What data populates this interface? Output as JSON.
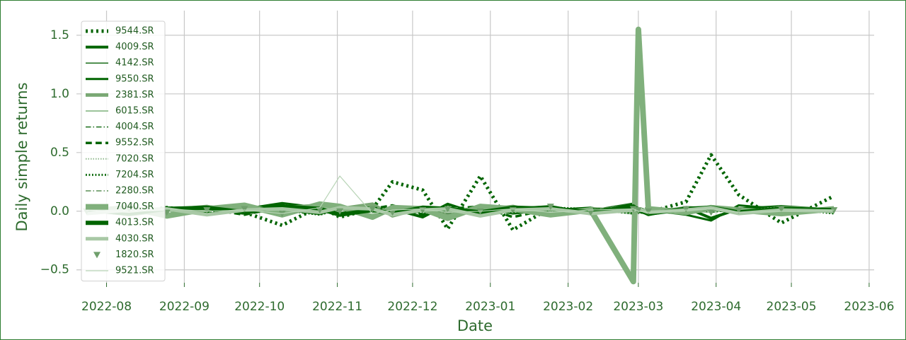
{
  "chart_data": {
    "type": "line",
    "xlabel": "Date",
    "ylabel": "Daily simple returns",
    "x": [
      "2022-07-24",
      "2022-08-10",
      "2022-08-25",
      "2022-09-10",
      "2022-09-25",
      "2022-10-10",
      "2022-10-25",
      "2022-11-02",
      "2022-11-15",
      "2022-11-23",
      "2022-12-05",
      "2022-12-15",
      "2022-12-28",
      "2023-01-10",
      "2023-01-25",
      "2023-02-10",
      "2023-02-27",
      "2023-03-01",
      "2023-03-05",
      "2023-03-20",
      "2023-03-30",
      "2023-04-10",
      "2023-04-27",
      "2023-05-18"
    ],
    "xlim": [
      "2022-07-20",
      "2023-06-03"
    ],
    "xticks": [
      "2022-08",
      "2022-09",
      "2022-10",
      "2022-11",
      "2022-12",
      "2023-01",
      "2023-02",
      "2023-03",
      "2023-04",
      "2023-05",
      "2023-06"
    ],
    "ylim": [
      -0.61,
      1.71
    ],
    "yticks": [
      {
        "value": -0.5,
        "label": "−0.5"
      },
      {
        "value": 0,
        "label": "0.0"
      },
      {
        "value": 0.5,
        "label": "0.5"
      },
      {
        "value": 1,
        "label": "1.0"
      },
      {
        "value": 1.5,
        "label": "1.5"
      }
    ],
    "grid": true,
    "legend": "upper left",
    "series": [
      {
        "name": "9544.SR",
        "color": "#006400",
        "linewidth": 5,
        "linestyle": "dotted",
        "values": [
          0.01,
          -0.02,
          0.03,
          0.0,
          -0.01,
          -0.12,
          0.04,
          -0.05,
          0.02,
          0.25,
          0.18,
          -0.15,
          0.3,
          -0.16,
          0.03,
          -0.02,
          0.05,
          0.02,
          -0.01,
          0.08,
          0.48,
          0.14,
          -0.1,
          0.13
        ]
      },
      {
        "name": "4009.SR",
        "color": "#006400",
        "linewidth": 4,
        "linestyle": "solid",
        "values": [
          0.0,
          0.02,
          -0.03,
          0.04,
          0.01,
          0.05,
          -0.02,
          0.03,
          -0.04,
          0.02,
          -0.05,
          0.06,
          -0.03,
          0.02,
          0.04,
          -0.02,
          0.06,
          0.01,
          -0.03,
          0.03,
          -0.06,
          0.02,
          0.04,
          0.01
        ]
      },
      {
        "name": "4142.SR",
        "color": "#1a6e1a",
        "linewidth": 1.5,
        "linestyle": "solid",
        "values": [
          0.01,
          -0.01,
          0.02,
          -0.02,
          0.03,
          0.01,
          -0.03,
          0.02,
          0.0,
          -0.02,
          0.03,
          0.01,
          -0.01,
          0.02,
          -0.03,
          0.01,
          0.07,
          -0.02,
          0.02,
          -0.01,
          0.03,
          -0.02,
          0.01,
          0.0
        ]
      },
      {
        "name": "9550.SR",
        "color": "#006400",
        "linewidth": 3,
        "linestyle": "solid",
        "values": [
          -0.02,
          0.03,
          0.01,
          -0.03,
          0.02,
          0.07,
          0.03,
          -0.02,
          0.04,
          -0.01,
          0.02,
          -0.04,
          0.03,
          -0.02,
          0.01,
          0.03,
          -0.02,
          0.02,
          0.01,
          -0.03,
          -0.08,
          0.05,
          0.02,
          -0.01
        ]
      },
      {
        "name": "2381.SR",
        "color": "#7aa874",
        "linewidth": 5,
        "linestyle": "solid",
        "values": [
          0.02,
          -0.03,
          0.01,
          0.04,
          -0.02,
          0.03,
          0.05,
          0.02,
          0.06,
          -0.04,
          0.03,
          -0.02,
          0.01,
          0.04,
          -0.03,
          0.02,
          0.01,
          0.0,
          -0.02,
          0.03,
          0.02,
          -0.01,
          0.03,
          0.01
        ]
      },
      {
        "name": "6015.SR",
        "color": "#9cc49a",
        "linewidth": 2,
        "linestyle": "solid",
        "values": [
          -0.01,
          0.02,
          -0.02,
          0.01,
          0.03,
          -0.01,
          0.02,
          0.04,
          -0.03,
          0.01,
          -0.02,
          0.03,
          0.02,
          -0.01,
          0.02,
          0.01,
          -0.02,
          0.01,
          0.02,
          0.0,
          -0.01,
          0.02,
          -0.02,
          0.01
        ]
      },
      {
        "name": "4004.SR",
        "color": "#1a6e1a",
        "linewidth": 1.5,
        "linestyle": "dashdot",
        "values": [
          0.0,
          0.01,
          0.02,
          -0.01,
          0.0,
          0.02,
          -0.02,
          0.01,
          0.03,
          0.0,
          -0.01,
          0.02,
          0.01,
          -0.02,
          0.01,
          0.0,
          0.02,
          -0.01,
          0.01,
          0.02,
          -0.01,
          0.01,
          0.0,
          0.02
        ]
      },
      {
        "name": "9552.SR",
        "color": "#006400",
        "linewidth": 3.5,
        "linestyle": "dashed",
        "values": [
          0.01,
          -0.02,
          0.03,
          0.02,
          -0.03,
          0.04,
          0.01,
          -0.02,
          0.02,
          0.05,
          -0.03,
          0.02,
          0.04,
          -0.05,
          0.02,
          0.01,
          0.03,
          -0.02,
          0.01,
          -0.02,
          0.04,
          0.02,
          -0.03,
          0.03
        ]
      },
      {
        "name": "7020.SR",
        "color": "#8fb88c",
        "linewidth": 2,
        "linestyle": "dotted",
        "values": [
          0.0,
          0.01,
          -0.01,
          0.02,
          0.01,
          -0.02,
          0.01,
          0.0,
          0.02,
          -0.01,
          0.01,
          0.02,
          -0.02,
          0.01,
          0.0,
          0.01,
          -0.01,
          0.02,
          0.0,
          0.01,
          0.02,
          -0.01,
          0.01,
          0.0
        ]
      },
      {
        "name": "7204.SR",
        "color": "#006400",
        "linewidth": 3,
        "linestyle": "dotted",
        "values": [
          -0.01,
          0.02,
          0.01,
          -0.02,
          0.03,
          0.01,
          -0.03,
          0.02,
          0.01,
          0.03,
          -0.02,
          0.01,
          0.02,
          -0.01,
          0.03,
          0.02,
          -0.02,
          0.01,
          0.03,
          -0.01,
          0.02,
          0.01,
          0.03,
          -0.02
        ]
      },
      {
        "name": "2280.SR",
        "color": "#5a8f57",
        "linewidth": 1.5,
        "linestyle": "dashdot",
        "values": [
          0.01,
          0.0,
          -0.02,
          0.01,
          0.02,
          -0.01,
          0.01,
          0.03,
          -0.01,
          0.02,
          0.01,
          -0.02,
          0.01,
          0.02,
          -0.01,
          0.01,
          0.02,
          0.0,
          -0.01,
          0.02,
          0.01,
          0.0,
          -0.01,
          0.01
        ]
      },
      {
        "name": "7040.SR",
        "color": "#80b07c",
        "linewidth": 8,
        "linestyle": "solid",
        "values": [
          0.0,
          0.03,
          -0.04,
          0.02,
          0.05,
          -0.03,
          0.06,
          0.04,
          -0.05,
          0.03,
          0.02,
          -0.06,
          0.04,
          0.02,
          -0.03,
          0.01,
          -0.6,
          1.55,
          0.02,
          -0.01,
          0.03,
          0.01,
          -0.02,
          0.02
        ]
      },
      {
        "name": "4013.SR",
        "color": "#006400",
        "linewidth": 6,
        "linestyle": "solid",
        "values": [
          0.01,
          -0.02,
          0.02,
          0.03,
          -0.01,
          0.04,
          0.02,
          -0.03,
          0.01,
          -0.02,
          0.03,
          0.02,
          -0.01,
          0.03,
          0.02,
          -0.01,
          0.04,
          0.01,
          -0.02,
          0.02,
          0.03,
          -0.01,
          0.02,
          0.01
        ]
      },
      {
        "name": "4030.SR",
        "color": "#a8c8a5",
        "linewidth": 5,
        "linestyle": "solid",
        "values": [
          -0.02,
          0.01,
          0.02,
          -0.03,
          0.01,
          0.02,
          -0.01,
          0.03,
          0.02,
          -0.03,
          0.01,
          0.02,
          -0.04,
          0.01,
          0.02,
          -0.02,
          0.01,
          0.02,
          -0.01,
          0.01,
          0.03,
          -0.02,
          0.01,
          0.0
        ]
      },
      {
        "name": "1820.SR",
        "color": "#6f9f6c",
        "linewidth": 0,
        "linestyle": "none",
        "marker": "triangle",
        "values": [
          0.0,
          0.02,
          -0.01,
          0.01,
          0.02,
          -0.02,
          0.01,
          0.0,
          0.02,
          -0.01,
          0.01,
          0.02,
          0.0,
          0.01,
          0.04,
          -0.01,
          0.02,
          0.01,
          0.0,
          0.02,
          -0.01,
          0.01,
          0.02,
          0.01
        ]
      },
      {
        "name": "9521.SR",
        "color": "#b8d4b6",
        "linewidth": 1.2,
        "linestyle": "solid",
        "values": [
          0.01,
          -0.01,
          0.02,
          0.0,
          0.01,
          -0.02,
          0.03,
          0.3,
          -0.02,
          0.01,
          0.02,
          -0.01,
          0.0,
          0.02,
          -0.01,
          0.01,
          0.02,
          0.0,
          -0.01,
          0.01,
          0.02,
          -0.01,
          0.0,
          0.01
        ]
      }
    ]
  }
}
